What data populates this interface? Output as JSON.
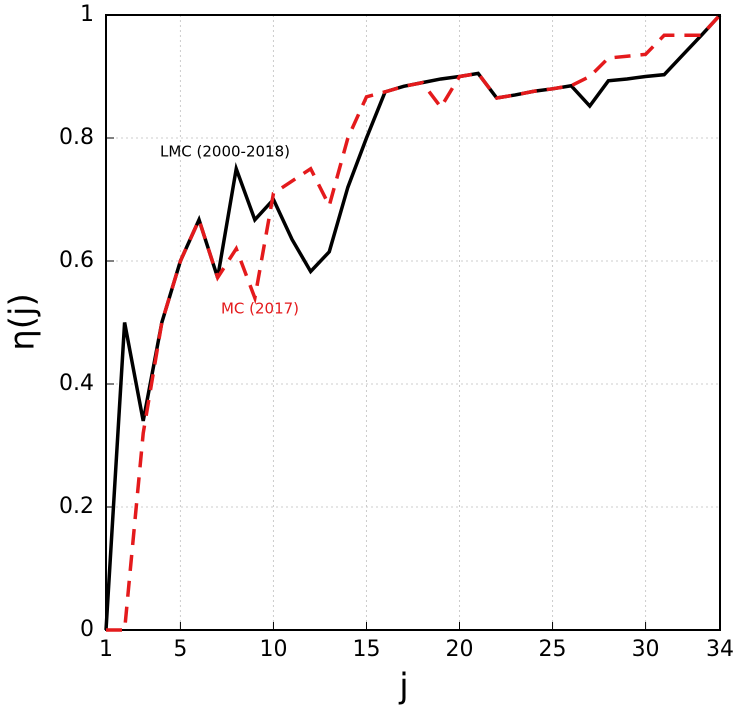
{
  "chart_data": {
    "type": "line",
    "xlabel": "j",
    "ylabel": "η(j)",
    "x": [
      1,
      2,
      3,
      4,
      5,
      6,
      7,
      8,
      9,
      10,
      11,
      12,
      13,
      14,
      15,
      16,
      17,
      18,
      19,
      20,
      21,
      22,
      23,
      24,
      25,
      26,
      27,
      28,
      29,
      30,
      31,
      32,
      33,
      34
    ],
    "series": [
      {
        "name": "LMC (2000-2018)",
        "color": "#000000",
        "dash": false,
        "values": [
          0,
          0.5,
          0.34,
          0.5,
          0.6,
          0.667,
          0.573,
          0.75,
          0.667,
          0.7,
          0.635,
          0.583,
          0.615,
          0.72,
          0.8,
          0.875,
          0.884,
          0.89,
          0.896,
          0.9,
          0.905,
          0.865,
          0.87,
          0.876,
          0.88,
          0.885,
          0.852,
          0.893,
          0.896,
          0.9,
          0.903,
          0.935,
          0.967,
          1
        ]
      },
      {
        "name": "MC (2017)",
        "color": "#e41a1c",
        "dash": true,
        "values": [
          0,
          0,
          0.32,
          0.5,
          0.6,
          0.667,
          0.573,
          0.62,
          0.54,
          0.71,
          0.73,
          0.75,
          0.69,
          0.8,
          0.867,
          0.875,
          0.884,
          0.89,
          0.85,
          0.9,
          0.905,
          0.865,
          0.87,
          0.876,
          0.88,
          0.885,
          0.9,
          0.93,
          0.933,
          0.936,
          0.967,
          0.967,
          0.967,
          1
        ]
      }
    ],
    "xlim": [
      1,
      34
    ],
    "xticks": [
      1,
      5,
      10,
      15,
      20,
      25,
      30,
      34
    ],
    "ylim": [
      0,
      1
    ],
    "yticks": [
      0,
      0.2,
      0.4,
      0.6,
      0.8,
      1
    ],
    "grid": true
  }
}
